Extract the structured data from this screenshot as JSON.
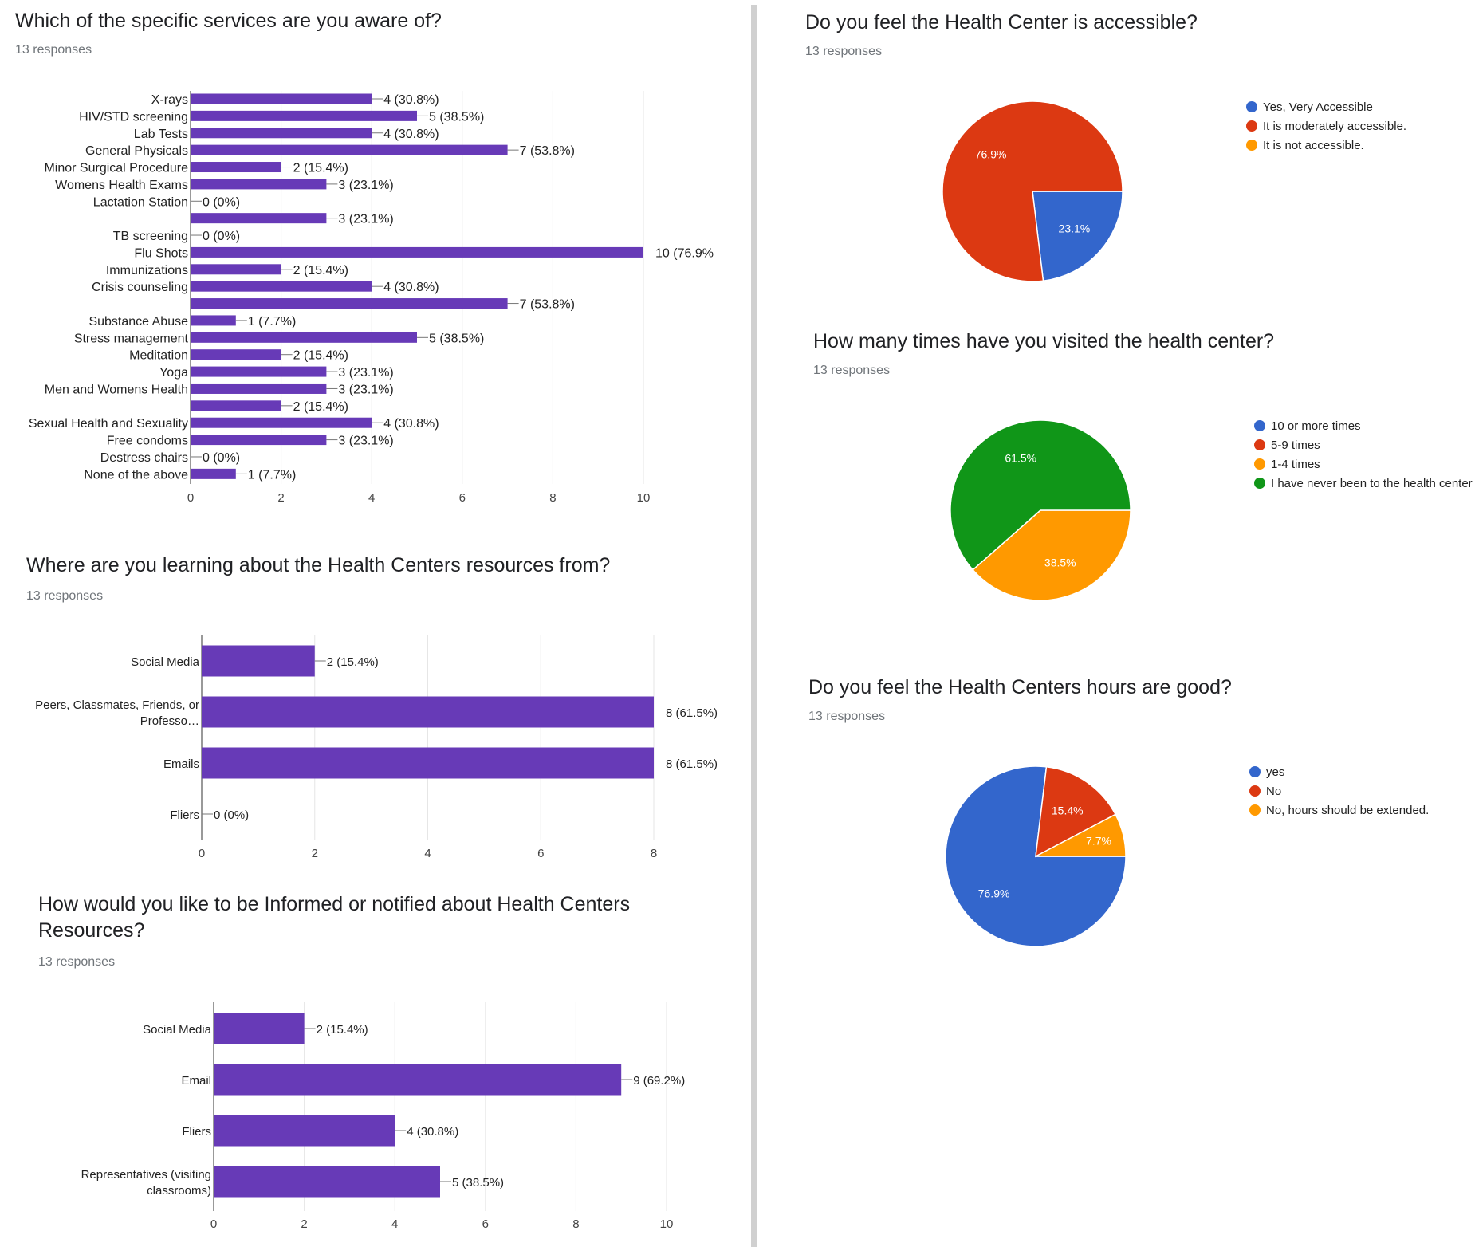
{
  "colors": {
    "bar": "#673ab7",
    "blue": "#3366cc",
    "red": "#dc3912",
    "orange": "#ff9900",
    "green": "#109618",
    "grid": "#e6e6e6",
    "axis": "#333333"
  },
  "icons": [
    "legend-dot-icon"
  ],
  "chart_data": [
    {
      "id": "services",
      "type": "bar",
      "orientation": "horizontal",
      "title": "Which of the specific services are you aware of?",
      "subtitle": "13 responses",
      "categories": [
        "X-rays",
        "HIV/STD screening",
        "Lab Tests",
        "General Physicals",
        "Minor Surgical Procedure",
        "Womens Health Exams",
        "Lactation Station",
        "",
        "TB screening",
        "Flu Shots",
        "Immunizations",
        "Crisis counseling",
        "",
        "Substance Abuse",
        "Stress management",
        "Meditation",
        "Yoga",
        "Men and Womens Health",
        "",
        "Sexual Health and Sexuality",
        "Free condoms",
        "Destress chairs",
        "None of the above"
      ],
      "values": [
        4,
        5,
        4,
        7,
        2,
        3,
        0,
        3,
        0,
        10,
        2,
        4,
        7,
        1,
        5,
        2,
        3,
        3,
        2,
        4,
        3,
        0,
        1
      ],
      "data_labels": [
        "4 (30.8%)",
        "5 (38.5%)",
        "4 (30.8%)",
        "7 (53.8%)",
        "2 (15.4%)",
        "3 (23.1%)",
        "0 (0%)",
        "3 (23.1%)",
        "0 (0%)",
        "10 (76.9%",
        "2 (15.4%)",
        "4 (30.8%)",
        "7 (53.8%)",
        "1 (7.7%)",
        "5 (38.5%)",
        "2 (15.4%)",
        "3 (23.1%)",
        "3 (23.1%)",
        "2 (15.4%)",
        "4 (30.8%)",
        "3 (23.1%)",
        "0 (0%)",
        "1 (7.7%)"
      ],
      "xlim": [
        0,
        10
      ],
      "xticks": [
        "0",
        "2",
        "4",
        "6",
        "8",
        "10"
      ],
      "grid": true
    },
    {
      "id": "learning",
      "type": "bar",
      "orientation": "horizontal",
      "title": "Where are you learning about the Health Centers resources from?",
      "subtitle": "13 responses",
      "categories": [
        [
          "Social Media"
        ],
        [
          "Peers, Classmates, Friends, or",
          "Professo…"
        ],
        [
          "Emails"
        ],
        [
          "Fliers"
        ]
      ],
      "values": [
        2,
        8,
        8,
        0
      ],
      "data_labels": [
        "2 (15.4%)",
        "8 (61.5%)",
        "8 (61.5%)",
        "0 (0%)"
      ],
      "xlim": [
        0,
        8
      ],
      "xticks": [
        "0",
        "2",
        "4",
        "6",
        "8"
      ],
      "grid": true
    },
    {
      "id": "notified",
      "type": "bar",
      "orientation": "horizontal",
      "title": "How would you like to be Informed or notified about Health Centers",
      "title2": "Resources?",
      "subtitle": "13 responses",
      "categories": [
        [
          "Social Media"
        ],
        [
          "Email"
        ],
        [
          "Fliers"
        ],
        [
          "Representatives (visiting",
          "classrooms)"
        ]
      ],
      "values": [
        2,
        9,
        4,
        5
      ],
      "data_labels": [
        "2 (15.4%)",
        "9 (69.2%)",
        "4 (30.8%)",
        "5 (38.5%)"
      ],
      "xlim": [
        0,
        10
      ],
      "xticks": [
        "0",
        "2",
        "4",
        "6",
        "8",
        "10"
      ],
      "grid": true
    },
    {
      "id": "accessible",
      "type": "pie",
      "title": "Do you feel the Health Center is accessible?",
      "subtitle": "13 responses",
      "legend": [
        "Yes, Very Accessible",
        "It is moderately accessible.",
        "It is not accessible."
      ],
      "legend_colors": [
        "#3366cc",
        "#dc3912",
        "#ff9900"
      ],
      "values": [
        23.1,
        76.9,
        0
      ],
      "slice_labels": [
        "23.1%",
        "76.9%",
        ""
      ],
      "legend_position": "right"
    },
    {
      "id": "visits",
      "type": "pie",
      "title": "How many times have you visited the health center?",
      "subtitle": "13 responses",
      "legend": [
        "10 or more times",
        "5-9 times",
        "1-4 times",
        "I have never been to the health center"
      ],
      "legend_colors": [
        "#3366cc",
        "#dc3912",
        "#ff9900",
        "#109618"
      ],
      "values": [
        0,
        0,
        38.5,
        61.5
      ],
      "slice_labels": [
        "",
        "",
        "38.5%",
        "61.5%"
      ],
      "legend_position": "right"
    },
    {
      "id": "hours",
      "type": "pie",
      "title": "Do you feel the Health Centers hours are good?",
      "subtitle": "13 responses",
      "legend": [
        "yes",
        "No",
        "No, hours should be extended."
      ],
      "legend_colors": [
        "#3366cc",
        "#dc3912",
        "#ff9900"
      ],
      "values": [
        76.9,
        15.4,
        7.7
      ],
      "slice_labels": [
        "76.9%",
        "15.4%",
        "7.7%"
      ],
      "legend_position": "right"
    }
  ]
}
